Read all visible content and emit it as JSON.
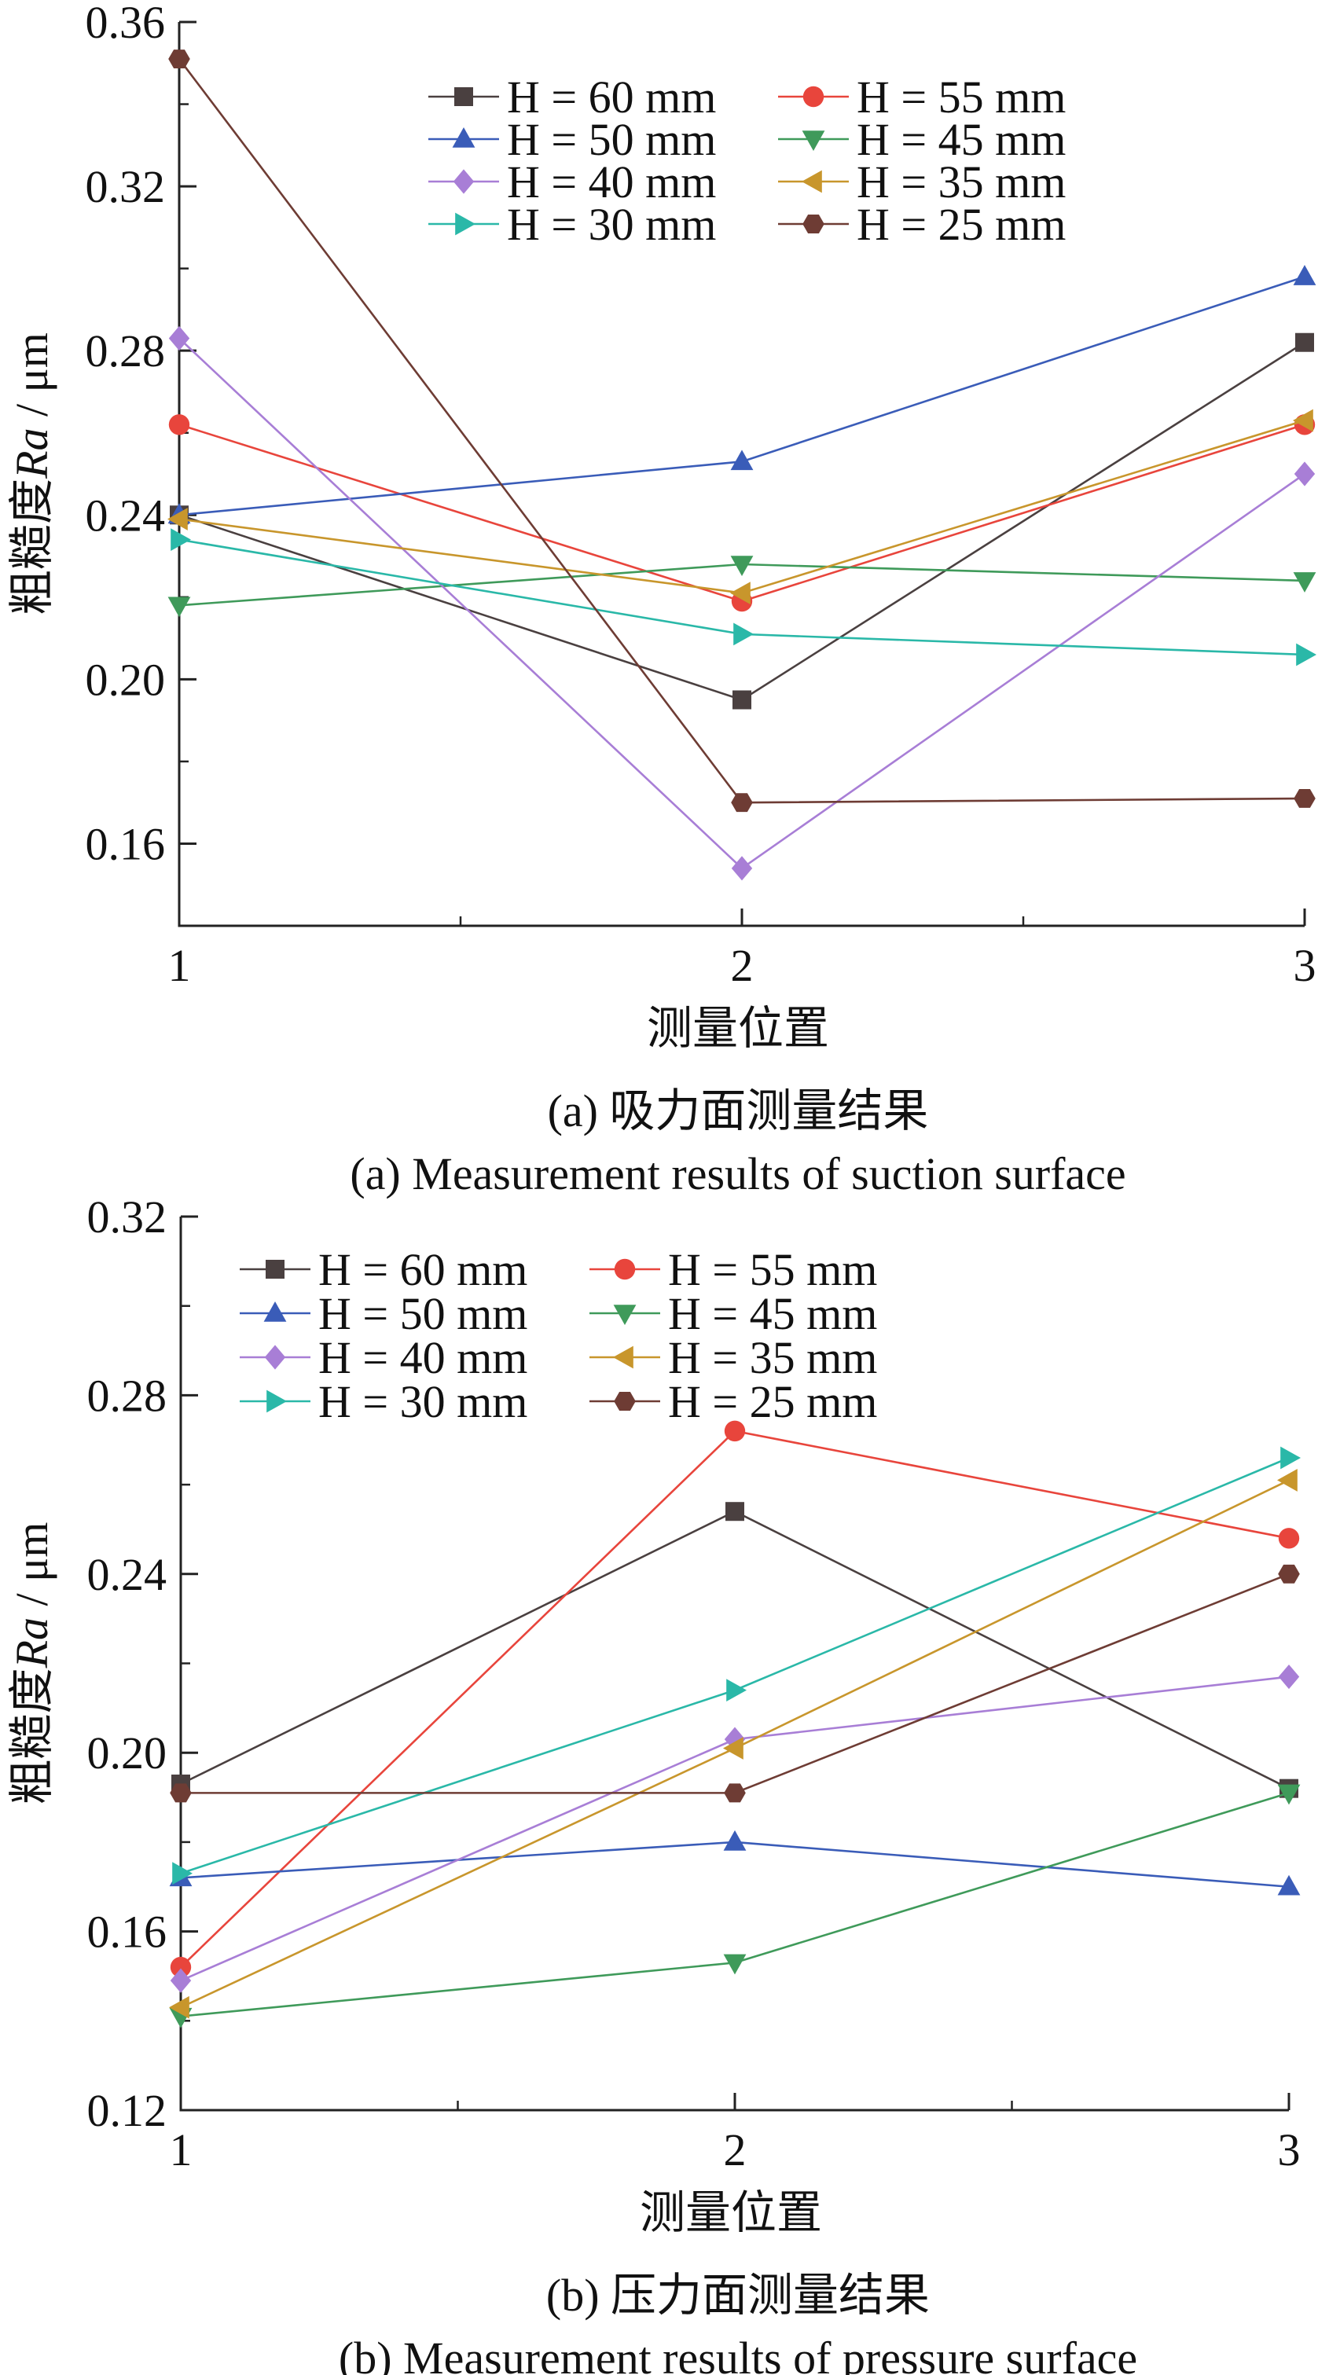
{
  "chart_data": [
    {
      "type": "line",
      "caption_cn": "(a) 吸力面测量结果",
      "caption_en": "(a) Measurement results of suction surface",
      "xlabel": "测量位置",
      "ylabel_prefix": "粗糙度",
      "ylabel_var": "Ra",
      "ylabel_unit": " / μm",
      "x": [
        1,
        2,
        3
      ],
      "x_ticks": [
        "1",
        "2",
        "3"
      ],
      "ylim": [
        0.14,
        0.36
      ],
      "y_ticks": [
        "0.16",
        "0.20",
        "0.24",
        "0.28",
        "0.32",
        "0.36"
      ],
      "legend_position": "top-right",
      "series": [
        {
          "name": "H = 60 mm",
          "marker": "square",
          "color": "#4a4040",
          "values": [
            0.24,
            0.195,
            0.282
          ]
        },
        {
          "name": "H = 55 mm",
          "marker": "circle",
          "color": "#e8453c",
          "values": [
            0.262,
            0.219,
            0.262
          ]
        },
        {
          "name": "H = 50 mm",
          "marker": "triangle-up",
          "color": "#3a5cb8",
          "values": [
            0.24,
            0.253,
            0.298
          ]
        },
        {
          "name": "H = 45 mm",
          "marker": "triangle-down",
          "color": "#3f9a5a",
          "values": [
            0.218,
            0.228,
            0.224
          ]
        },
        {
          "name": "H = 40 mm",
          "marker": "diamond",
          "color": "#a87ed6",
          "values": [
            0.283,
            0.154,
            0.25
          ]
        },
        {
          "name": "H = 35 mm",
          "marker": "triangle-left",
          "color": "#c8962c",
          "values": [
            0.239,
            0.221,
            0.263
          ]
        },
        {
          "name": "H = 30 mm",
          "marker": "triangle-right",
          "color": "#2ab8a8",
          "values": [
            0.234,
            0.211,
            0.206
          ]
        },
        {
          "name": "H = 25 mm",
          "marker": "hexagon",
          "color": "#6e3c34",
          "values": [
            0.351,
            0.17,
            0.171
          ]
        }
      ]
    },
    {
      "type": "line",
      "caption_cn": "(b) 压力面测量结果",
      "caption_en": "(b) Measurement results of pressure surface",
      "xlabel": "测量位置",
      "ylabel_prefix": "粗糙度",
      "ylabel_var": "Ra",
      "ylabel_unit": " / μm",
      "x": [
        1,
        2,
        3
      ],
      "x_ticks": [
        "1",
        "2",
        "3"
      ],
      "ylim": [
        0.12,
        0.32
      ],
      "y_ticks": [
        "0.12",
        "0.16",
        "0.20",
        "0.24",
        "0.28",
        "0.32"
      ],
      "legend_position": "top-left",
      "series": [
        {
          "name": "H = 60 mm",
          "marker": "square",
          "color": "#4a4040",
          "values": [
            0.193,
            0.254,
            0.192
          ]
        },
        {
          "name": "H = 55 mm",
          "marker": "circle",
          "color": "#e8453c",
          "values": [
            0.152,
            0.272,
            0.248
          ]
        },
        {
          "name": "H = 50 mm",
          "marker": "triangle-up",
          "color": "#3a5cb8",
          "values": [
            0.172,
            0.18,
            0.17
          ]
        },
        {
          "name": "H = 45 mm",
          "marker": "triangle-down",
          "color": "#3f9a5a",
          "values": [
            0.141,
            0.153,
            0.191
          ]
        },
        {
          "name": "H = 40 mm",
          "marker": "diamond",
          "color": "#a87ed6",
          "values": [
            0.149,
            0.203,
            0.217
          ]
        },
        {
          "name": "H = 35 mm",
          "marker": "triangle-left",
          "color": "#c8962c",
          "values": [
            0.143,
            0.201,
            0.261
          ]
        },
        {
          "name": "H = 30 mm",
          "marker": "triangle-right",
          "color": "#2ab8a8",
          "values": [
            0.173,
            0.214,
            0.266
          ]
        },
        {
          "name": "H = 25 mm",
          "marker": "hexagon",
          "color": "#6e3c34",
          "values": [
            0.191,
            0.191,
            0.24
          ]
        }
      ]
    }
  ]
}
